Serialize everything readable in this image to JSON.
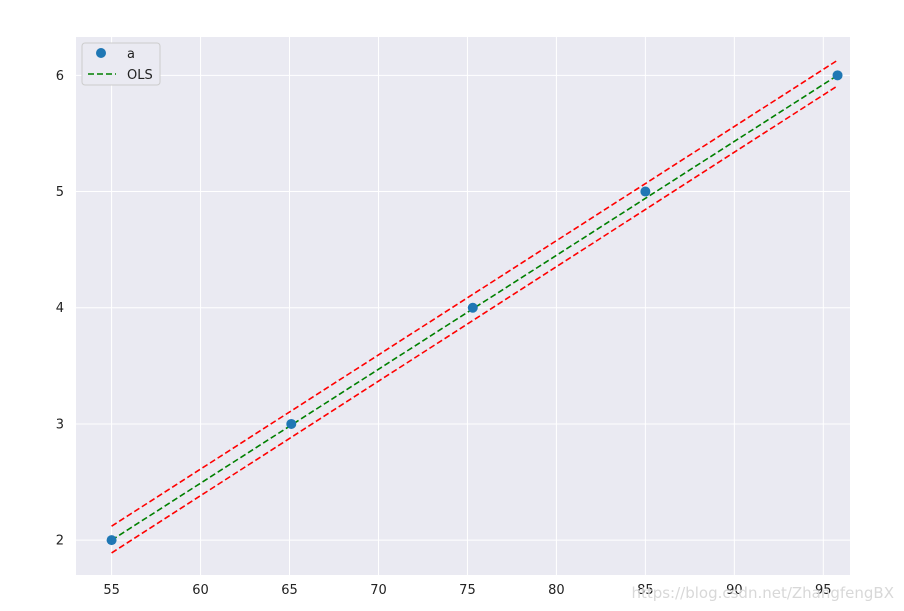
{
  "chart_data": {
    "type": "scatter",
    "title": "",
    "xlabel": "",
    "ylabel": "",
    "xlim": [
      53,
      96.5
    ],
    "ylim": [
      1.7,
      6.33
    ],
    "x_ticks": [
      55,
      60,
      65,
      70,
      75,
      80,
      85,
      90,
      95
    ],
    "y_ticks": [
      2,
      3,
      4,
      5,
      6
    ],
    "x_tick_labels": [
      "55",
      "60",
      "65",
      "70",
      "75",
      "80",
      "85",
      "90",
      "95"
    ],
    "y_tick_labels": [
      "2",
      "3",
      "4",
      "5",
      "6"
    ],
    "grid": true,
    "legend_position": "top-left",
    "series": [
      {
        "name": "a",
        "type": "scatter",
        "color": "#1f77b4",
        "x": [
          55.0,
          65.1,
          75.3,
          85.0,
          95.8
        ],
        "y": [
          2,
          3,
          4,
          5,
          6
        ]
      },
      {
        "name": "OLS",
        "type": "line",
        "style": "dashed",
        "color": "#008000",
        "x": [
          55.0,
          95.8
        ],
        "y": [
          2.0,
          6.0
        ]
      },
      {
        "type": "line",
        "style": "dashed",
        "color": "#ff0000",
        "x": [
          55.0,
          95.8
        ],
        "y": [
          2.12,
          6.13
        ]
      },
      {
        "type": "line",
        "style": "dashed",
        "color": "#ff0000",
        "x": [
          55.0,
          95.8
        ],
        "y": [
          1.89,
          5.91
        ]
      }
    ]
  },
  "watermark": "https://blog.csdn.net/ZhangfengBX"
}
